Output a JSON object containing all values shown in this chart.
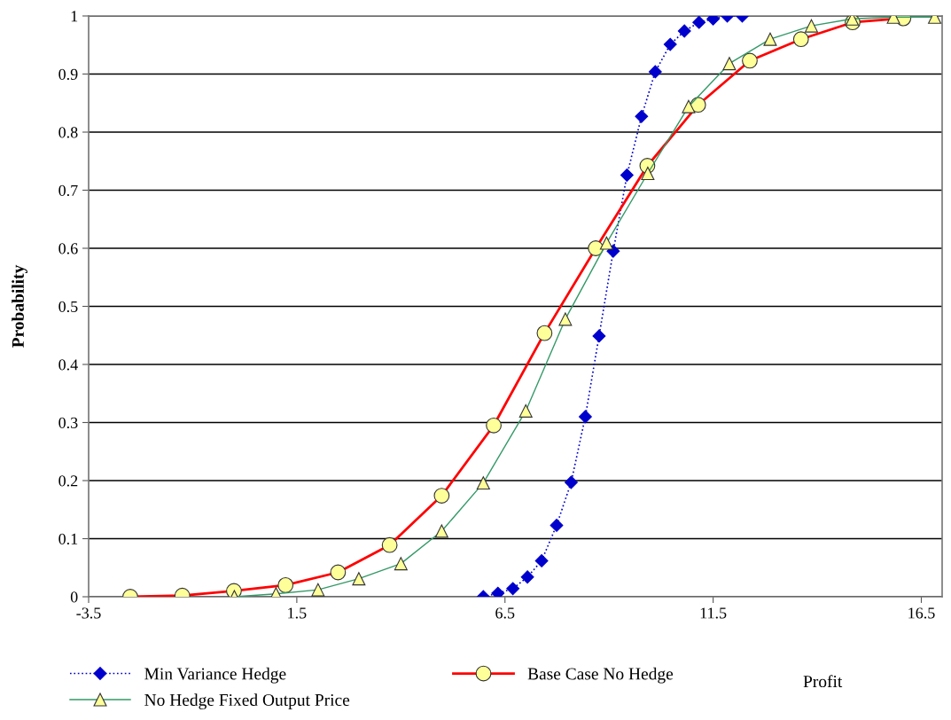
{
  "chart_data": {
    "type": "line",
    "xlabel": "Profit",
    "ylabel": "Probability",
    "xlim": [
      -3.5,
      17
    ],
    "xticks": [
      -3.5,
      1.5,
      6.5,
      11.5,
      16.5
    ],
    "ylim": [
      0,
      1
    ],
    "yticks": [
      0,
      0.1,
      0.2,
      0.3,
      0.4,
      0.5,
      0.6,
      0.7,
      0.8,
      0.9,
      1
    ],
    "grid": "y",
    "legend": "bottom",
    "series": [
      {
        "name": "Min Variance Hedge",
        "color": "#0000cc",
        "marker": "diamond",
        "line_style": "dotted",
        "x": [
          5.98,
          6.33,
          6.69,
          7.04,
          7.38,
          7.74,
          8.09,
          8.43,
          8.76,
          9.1,
          9.43,
          9.78,
          10.11,
          10.47,
          10.81,
          11.16,
          11.5,
          11.84,
          12.2
        ],
        "values": [
          0.0,
          0.006,
          0.014,
          0.034,
          0.062,
          0.123,
          0.197,
          0.31,
          0.449,
          0.595,
          0.726,
          0.827,
          0.904,
          0.951,
          0.974,
          0.989,
          0.995,
          1.0,
          1.0
        ]
      },
      {
        "name": "Base Case No Hedge",
        "color": "#ff0000",
        "marker": "circle",
        "line_style": "solid",
        "x": [
          -2.5,
          -1.25,
          -0.01,
          1.23,
          2.49,
          3.73,
          4.98,
          6.23,
          7.45,
          8.68,
          9.92,
          11.14,
          12.38,
          13.61,
          14.85,
          16.07
        ],
        "values": [
          0.0,
          0.002,
          0.01,
          0.02,
          0.042,
          0.089,
          0.174,
          0.295,
          0.454,
          0.6,
          0.742,
          0.847,
          0.923,
          0.96,
          0.989,
          0.996
        ]
      },
      {
        "name": "No Hedge Fixed Output Price",
        "color": "#339966",
        "marker": "triangle",
        "line_style": "solid",
        "x": [
          0.0,
          1.0,
          2.01,
          2.99,
          4.0,
          4.98,
          5.98,
          7.0,
          7.95,
          8.94,
          9.93,
          10.91,
          11.89,
          12.87,
          13.86,
          14.84,
          15.83,
          16.82
        ],
        "values": [
          0.0,
          0.005,
          0.012,
          0.031,
          0.057,
          0.113,
          0.196,
          0.32,
          0.478,
          0.609,
          0.729,
          0.844,
          0.918,
          0.96,
          0.983,
          0.995,
          0.998,
          0.998
        ]
      }
    ]
  }
}
